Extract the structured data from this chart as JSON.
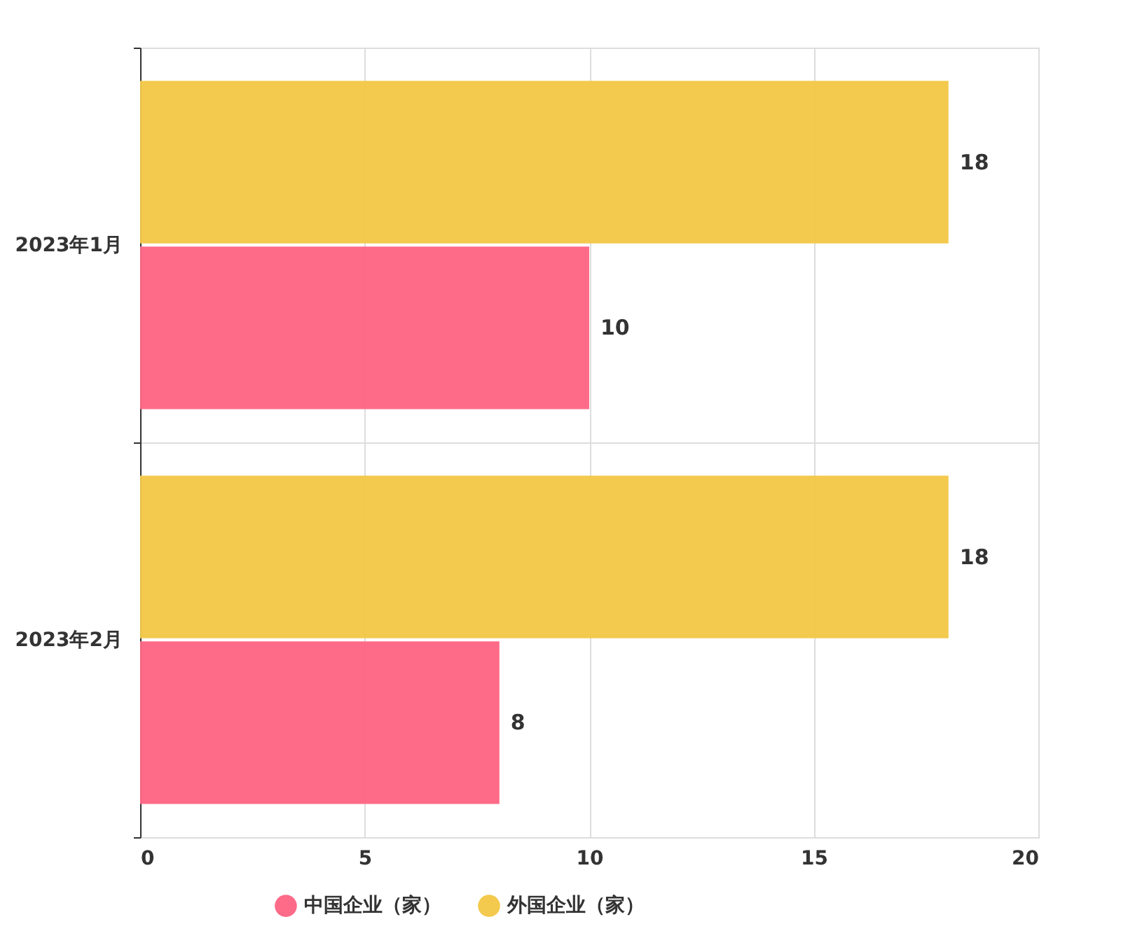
{
  "chart_data": {
    "type": "bar",
    "orientation": "horizontal",
    "categories": [
      "2023年1月",
      "2023年2月"
    ],
    "series": [
      {
        "name": "中国企业（家）",
        "color": "#fe6383",
        "values": [
          10,
          8
        ]
      },
      {
        "name": "外国企业（家）",
        "color": "#f2c744",
        "values": [
          18,
          18
        ]
      }
    ],
    "xlim": [
      0,
      20
    ],
    "xticks": [
      0,
      5,
      10,
      15,
      20
    ],
    "grid": true,
    "legend": "bottom",
    "data_labels": true
  }
}
